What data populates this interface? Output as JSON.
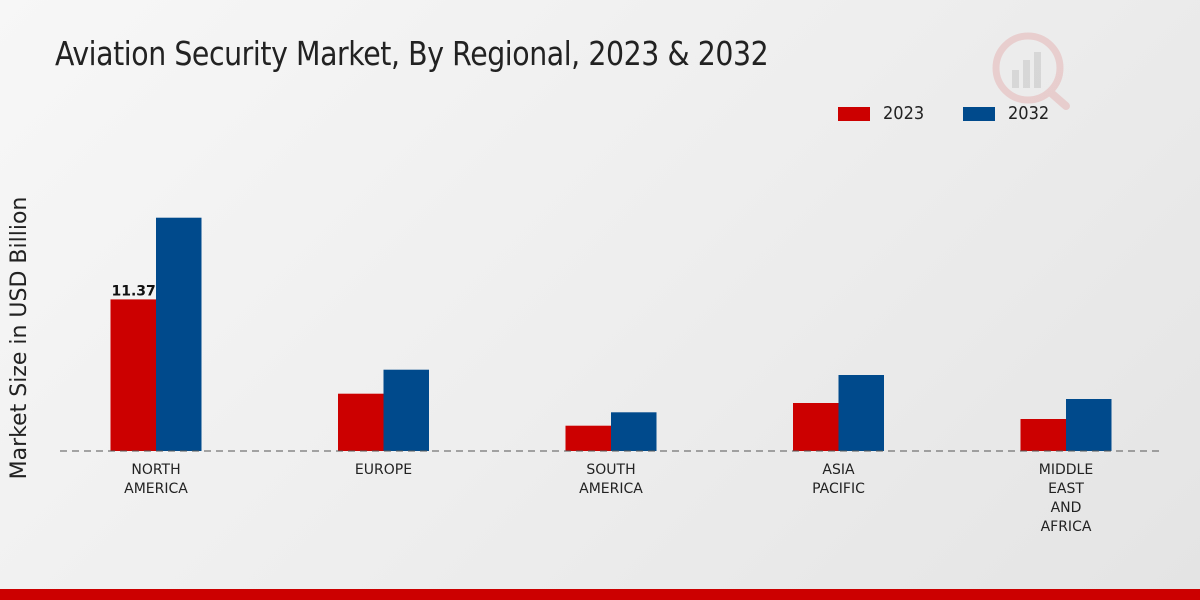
{
  "header": {
    "title": "Aviation Security Market, By Regional, 2023 & 2032"
  },
  "legend": {
    "items": [
      {
        "label": "2023",
        "color": "#cc0000"
      },
      {
        "label": "2032",
        "color": "#004a8c"
      }
    ]
  },
  "logo": {
    "icon": "brand-logo-icon"
  },
  "chart_data": {
    "type": "bar",
    "title": "Aviation Security Market, By Regional, 2023 & 2032",
    "xlabel": "",
    "ylabel": "Market Size in USD Billion",
    "categories": [
      [
        "NORTH",
        "AMERICA"
      ],
      [
        "EUROPE"
      ],
      [
        "SOUTH",
        "AMERICA"
      ],
      [
        "ASIA",
        "PACIFIC"
      ],
      [
        "MIDDLE",
        "EAST",
        "AND",
        "AFRICA"
      ]
    ],
    "series": [
      {
        "name": "2023",
        "color": "#cc0000",
        "values": [
          11.37,
          4.3,
          1.9,
          3.6,
          2.4
        ]
      },
      {
        "name": "2032",
        "color": "#004a8c",
        "values": [
          17.5,
          6.1,
          2.9,
          5.7,
          3.9
        ]
      }
    ],
    "data_labels": [
      {
        "series": 0,
        "index": 0,
        "text": "11.37"
      }
    ],
    "ylim": [
      0,
      30
    ],
    "grid": false,
    "legend_position": "top-right"
  }
}
